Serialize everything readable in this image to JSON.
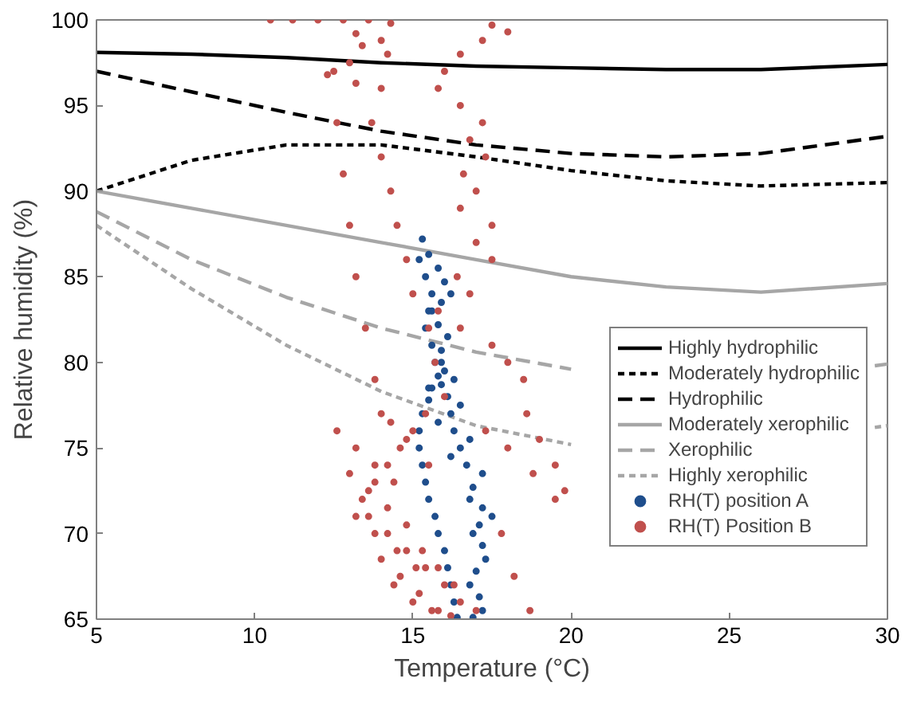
{
  "chart_data": {
    "type": "line",
    "xlabel": "Temperature (°C)",
    "ylabel": "Relative humidity (%)",
    "xlim": [
      5,
      30
    ],
    "ylim": [
      65,
      100
    ],
    "xticks": [
      5,
      10,
      15,
      20,
      25,
      30
    ],
    "yticks": [
      65,
      70,
      75,
      80,
      85,
      90,
      95,
      100
    ],
    "grid": false,
    "legend": "right",
    "x": [
      5,
      8,
      11,
      14,
      17,
      20,
      23,
      26,
      30
    ],
    "series": [
      {
        "name": "Highly hydrophilic",
        "color": "#000000",
        "line_style": "solid",
        "values": [
          98.1,
          98.0,
          97.8,
          97.5,
          97.3,
          97.2,
          97.1,
          97.1,
          97.4
        ]
      },
      {
        "name": "Moderately hydrophilic",
        "color": "#000000",
        "line_style": "dotted",
        "values": [
          90.0,
          91.8,
          92.7,
          92.7,
          92.0,
          91.2,
          90.6,
          90.3,
          90.5
        ]
      },
      {
        "name": "Hydrophilic",
        "color": "#000000",
        "line_style": "dashed",
        "values": [
          97.0,
          95.8,
          94.6,
          93.5,
          92.7,
          92.2,
          92.0,
          92.2,
          93.2
        ]
      },
      {
        "name": "Moderately xerophilic",
        "color": "#a6a6a6",
        "line_style": "solid",
        "values": [
          90.0,
          89.0,
          88.0,
          87.0,
          86.0,
          85.0,
          84.4,
          84.1,
          84.6
        ]
      },
      {
        "name": "Xerophilic",
        "color": "#a6a6a6",
        "line_style": "dashed",
        "x": [
          5,
          8,
          11,
          14,
          17,
          20,
          23,
          26,
          29.6,
          30
        ],
        "values": [
          88.8,
          86.0,
          83.8,
          82.0,
          80.6,
          79.6,
          null,
          null,
          79.8,
          79.9
        ]
      },
      {
        "name": "Highly xerophilic",
        "color": "#a6a6a6",
        "line_style": "dotted",
        "x": [
          5,
          8,
          11,
          14,
          17,
          20,
          23,
          26,
          29.6,
          30
        ],
        "values": [
          88.0,
          84.3,
          81.0,
          78.3,
          76.3,
          75.2,
          null,
          null,
          76.2,
          76.3
        ]
      },
      {
        "name": "RH(T) position A",
        "type": "scatter",
        "marker": "circle",
        "color": "#1f4e8c",
        "x": [
          15.3,
          15.5,
          15.8,
          16.0,
          16.2,
          15.9,
          15.6,
          15.8,
          16.1,
          15.9,
          15.7,
          16.0,
          16.3,
          15.9,
          15.5,
          16.1,
          16.5,
          16.2,
          15.8,
          16.3,
          16.8,
          16.5,
          16.2,
          16.7,
          17.2,
          16.9,
          16.8,
          17.2,
          17.5,
          17.1,
          16.9,
          17.2,
          17.3,
          17.0,
          16.8,
          17.1,
          17.2,
          16.9,
          16.4,
          16.3,
          16.2,
          16.1,
          16.0,
          15.8,
          15.7,
          15.5,
          15.4,
          15.3,
          15.2,
          15.2,
          15.3,
          15.5,
          15.6,
          15.8,
          15.9,
          15.6,
          15.4,
          15.5,
          15.6,
          15.4,
          15.2
        ],
        "values": [
          87.2,
          86.3,
          85.5,
          84.7,
          84.0,
          83.5,
          83.0,
          82.2,
          81.5,
          80.7,
          80.0,
          79.5,
          79.0,
          78.7,
          78.5,
          78.0,
          77.5,
          77.0,
          76.5,
          76.0,
          75.5,
          75.0,
          74.5,
          74.0,
          73.5,
          72.7,
          72.0,
          71.5,
          71.0,
          70.5,
          70.0,
          69.3,
          68.5,
          67.8,
          67.0,
          66.3,
          65.5,
          65.1,
          65.1,
          66.0,
          67.0,
          68.0,
          69.0,
          70.0,
          71.0,
          72.0,
          73.0,
          74.0,
          75.0,
          76.0,
          77.0,
          77.8,
          78.5,
          79.2,
          80.0,
          81.0,
          82.0,
          83.0,
          84.0,
          85.0,
          86.0
        ]
      },
      {
        "name": "RH(T) Position B",
        "type": "scatter",
        "marker": "circle",
        "color": "#c0504d",
        "x": [
          10.5,
          11.2,
          12.0,
          12.8,
          13.6,
          14.3,
          13.2,
          14.0,
          13.4,
          14.2,
          13.0,
          12.3,
          13.2,
          14.0,
          13.7,
          14.0,
          14.3,
          14.5,
          14.8,
          15.0,
          15.5,
          15.7,
          16.0,
          15.4,
          15.0,
          14.6,
          14.2,
          13.8,
          13.4,
          13.6,
          14.2,
          14.8,
          15.4,
          16.0,
          16.5,
          17.0,
          17.5,
          18.0,
          17.2,
          16.5,
          16.0,
          15.8,
          16.5,
          17.2,
          16.8,
          17.3,
          16.6,
          17.0,
          16.5,
          17.5,
          17.0,
          17.5,
          16.4,
          16.8,
          15.8,
          16.5,
          17.5,
          18.0,
          18.5,
          18.6,
          19.0,
          19.5,
          19.8,
          19.5,
          18.8,
          18.0,
          17.3,
          17.8,
          18.2,
          18.7,
          12.5,
          12.6,
          12.8,
          13.0,
          13.2,
          13.5,
          13.8,
          14.0,
          12.6,
          13.2,
          13.8,
          14.4,
          13.0,
          13.6,
          14.2,
          14.8,
          13.2,
          13.8,
          14.5,
          15.1,
          14.0,
          14.6,
          15.2,
          15.8,
          14.4,
          15.0,
          15.6,
          16.2,
          15.3,
          15.8,
          16.3,
          14.3,
          14.8,
          15.5
        ],
        "values": [
          100.0,
          100.0,
          100.0,
          100.0,
          100.0,
          99.8,
          99.2,
          98.8,
          98.5,
          98.0,
          97.5,
          96.8,
          96.3,
          96.0,
          94.0,
          92.0,
          90.0,
          88.0,
          86.0,
          84.0,
          82.0,
          80.0,
          78.0,
          77.0,
          76.0,
          75.0,
          74.0,
          73.0,
          72.0,
          71.0,
          70.0,
          69.0,
          68.0,
          67.0,
          66.0,
          65.5,
          99.7,
          99.3,
          98.8,
          98.0,
          97.0,
          96.0,
          95.0,
          94.0,
          93.0,
          92.0,
          91.0,
          90.0,
          89.0,
          88.0,
          87.0,
          86.0,
          85.0,
          84.0,
          83.0,
          82.0,
          81.0,
          80.0,
          79.0,
          77.0,
          75.5,
          74.0,
          72.5,
          72.0,
          73.5,
          75.0,
          76.0,
          70.0,
          67.5,
          65.5,
          97.0,
          94.0,
          91.0,
          88.0,
          85.0,
          82.0,
          79.0,
          77.0,
          76.0,
          75.0,
          74.0,
          73.0,
          73.5,
          72.5,
          71.5,
          70.5,
          71.0,
          70.0,
          69.0,
          68.0,
          68.5,
          67.5,
          66.5,
          65.5,
          67.0,
          66.0,
          65.5,
          65.2,
          69.0,
          68.0,
          67.0,
          76.5,
          75.5,
          74.0
        ]
      }
    ]
  }
}
